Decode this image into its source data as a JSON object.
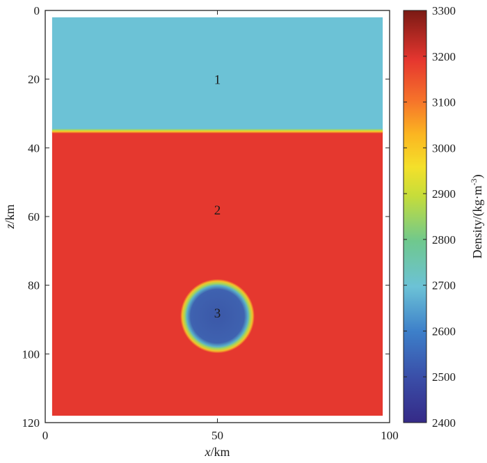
{
  "chart_data": {
    "type": "heatmap",
    "xlabel": {
      "var": "x",
      "unit": "/km"
    },
    "ylabel": {
      "var": "z",
      "unit": "/km"
    },
    "xlim": [
      0,
      100
    ],
    "ylim": [
      120,
      0
    ],
    "xticks": [
      0,
      50,
      100
    ],
    "yticks": [
      0,
      20,
      40,
      60,
      80,
      100,
      120
    ],
    "model_extent": {
      "x": [
        2,
        98
      ],
      "z": [
        2,
        118
      ]
    },
    "colormap": "parula-jet",
    "layers": [
      {
        "label": "1",
        "kind": "layer",
        "z_top": 2,
        "z_bottom": 35,
        "density": 2700,
        "label_at": [
          50,
          20
        ]
      },
      {
        "label": "2",
        "kind": "layer",
        "z_top": 35,
        "z_bottom": 118,
        "density": 3200,
        "label_at": [
          50,
          58
        ]
      },
      {
        "label": "3",
        "kind": "circle",
        "center": [
          50,
          89
        ],
        "radius": 10,
        "density": 2550,
        "label_at": [
          50,
          88
        ]
      }
    ],
    "colorbar": {
      "label": "Density/(kg·m",
      "label_sup": "-3",
      "label_close": ")",
      "range": [
        2400,
        3300
      ],
      "ticks": [
        2400,
        2500,
        2600,
        2700,
        2800,
        2900,
        3000,
        3100,
        3200,
        3300
      ]
    }
  }
}
